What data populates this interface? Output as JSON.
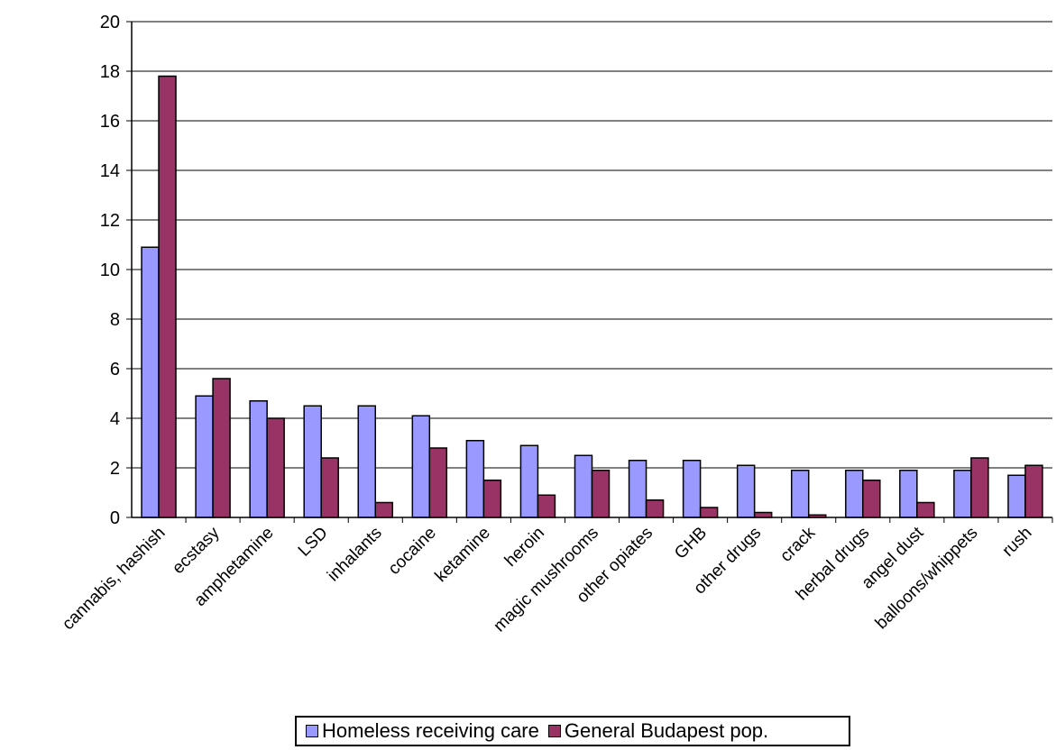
{
  "chart_data": {
    "type": "bar",
    "categories": [
      "cannabis, hashish",
      "ecstasy",
      "amphetamine",
      "LSD",
      "inhalants",
      "cocaine",
      "ketamine",
      "heroin",
      "magic mushrooms",
      "other opiates",
      "GHB",
      "other drugs",
      "crack",
      "herbal drugs",
      "angel dust",
      "balloons/whippets",
      "rush"
    ],
    "series": [
      {
        "name": "Homeless receiving care",
        "color": "#9999ff",
        "values": [
          10.9,
          4.9,
          4.7,
          4.5,
          4.5,
          4.1,
          3.1,
          2.9,
          2.5,
          2.3,
          2.3,
          2.1,
          1.9,
          1.9,
          1.9,
          1.9,
          1.7
        ]
      },
      {
        "name": "General Budapest pop.",
        "color": "#993366",
        "values": [
          17.8,
          5.6,
          4.0,
          2.4,
          0.6,
          2.8,
          1.5,
          0.9,
          1.9,
          0.7,
          0.4,
          0.2,
          0.1,
          1.5,
          0.6,
          2.4,
          2.1
        ]
      }
    ],
    "yticks": [
      "0",
      "2",
      "4",
      "6",
      "8",
      "10",
      "12",
      "14",
      "16",
      "18",
      "20"
    ],
    "ylim": [
      0,
      20
    ],
    "grid": true,
    "legend_position": "bottom"
  }
}
